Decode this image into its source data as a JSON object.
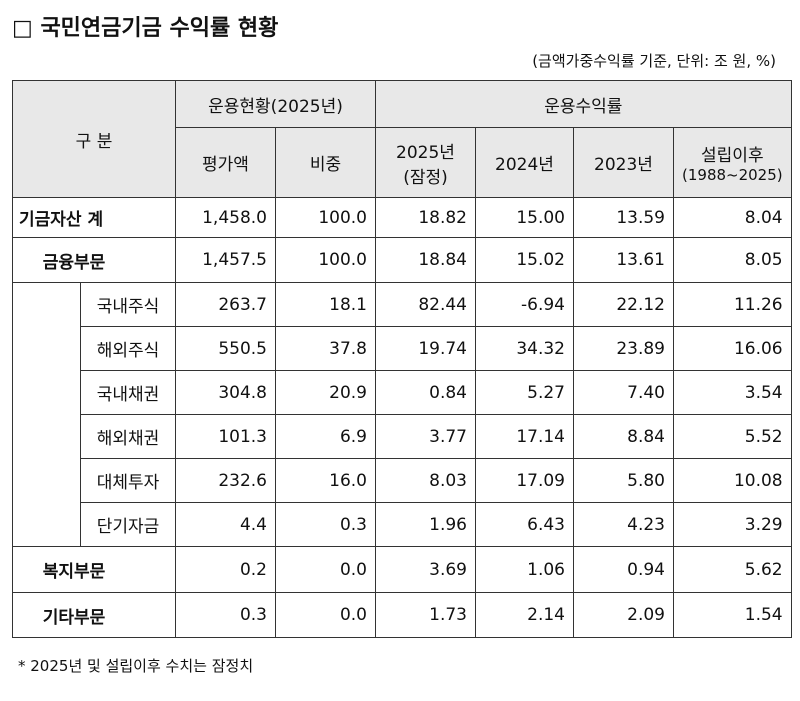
{
  "header": {
    "title": "□ 국민연금기금 수익률 현황",
    "unit_note": "(금액가중수익률 기준, 단위: 조 원, %)"
  },
  "table": {
    "group_headers": [
      "구 분",
      "운용현황(2025년)",
      "운용수익률"
    ],
    "columns": [
      [
        "평가액"
      ],
      [
        "비중"
      ],
      [
        "2025년",
        "(잠정)"
      ],
      [
        "2024년"
      ],
      [
        "2023년"
      ],
      [
        "설립이후",
        "(1988~2025)"
      ]
    ],
    "rows": [
      {
        "label": "기금자산 계",
        "values": [
          "1,458.0",
          "100.0",
          "18.82",
          "15.00",
          "13.59",
          "8.04"
        ]
      },
      {
        "label": "금융부문",
        "values": [
          "1,457.5",
          "100.0",
          "18.84",
          "15.02",
          "13.61",
          "8.05"
        ],
        "sub_rows": [
          {
            "label": "국내주식",
            "values": [
              "263.7",
              "18.1",
              "82.44",
              "-6.94",
              "22.12",
              "11.26"
            ]
          },
          {
            "label": "해외주식",
            "values": [
              "550.5",
              "37.8",
              "19.74",
              "34.32",
              "23.89",
              "16.06"
            ]
          },
          {
            "label": "국내채권",
            "values": [
              "304.8",
              "20.9",
              "0.84",
              "5.27",
              "7.40",
              "3.54"
            ]
          },
          {
            "label": "해외채권",
            "values": [
              "101.3",
              "6.9",
              "3.77",
              "17.14",
              "8.84",
              "5.52"
            ]
          },
          {
            "label": "대체투자",
            "values": [
              "232.6",
              "16.0",
              "8.03",
              "17.09",
              "5.80",
              "10.08"
            ]
          },
          {
            "label": "단기자금",
            "values": [
              "4.4",
              "0.3",
              "1.96",
              "6.43",
              "4.23",
              "3.29"
            ]
          }
        ]
      },
      {
        "label": "복지부문",
        "values": [
          "0.2",
          "0.0",
          "3.69",
          "1.06",
          "0.94",
          "5.62"
        ]
      },
      {
        "label": "기타부문",
        "values": [
          "0.3",
          "0.0",
          "1.73",
          "2.14",
          "2.09",
          "1.54"
        ]
      }
    ]
  },
  "footnote": "* 2025년 및 설립이후 수치는 잠정치"
}
